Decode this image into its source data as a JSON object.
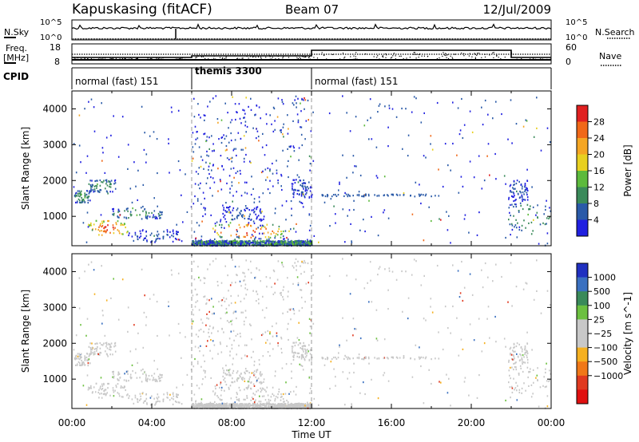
{
  "header": {
    "title": "Kapuskasing (fitACF)",
    "beam": "Beam 07",
    "date": "12/Jul/2009"
  },
  "noise_panel": {
    "left_label": "N.Sky",
    "left_ticks": [
      "10^5",
      "10^0"
    ],
    "right_label": "N.Search",
    "right_ticks": [
      "10^5",
      "10^0"
    ]
  },
  "freq_panel": {
    "left_label_1": "Freq.",
    "left_label_2": "[MHz]",
    "left_ticks": [
      "18",
      "8"
    ],
    "right_label": "Nave",
    "right_ticks": [
      "60",
      "0"
    ]
  },
  "cpid_panel": {
    "label": "CPID",
    "modes": [
      {
        "name": "normal (fast) 151",
        "start_hour": 0,
        "end_hour": 6
      },
      {
        "name": "themis 3300",
        "start_hour": 6,
        "end_hour": 12
      },
      {
        "name": "normal (fast) 151",
        "start_hour": 12,
        "end_hour": 24
      }
    ]
  },
  "x_axis": {
    "label": "Time UT",
    "range_hours": [
      0,
      24
    ],
    "ticks": [
      {
        "hour": 0,
        "label": "00:00"
      },
      {
        "hour": 4,
        "label": "04:00"
      },
      {
        "hour": 8,
        "label": "08:00"
      },
      {
        "hour": 12,
        "label": "12:00"
      },
      {
        "hour": 16,
        "label": "16:00"
      },
      {
        "hour": 20,
        "label": "20:00"
      },
      {
        "hour": 24,
        "label": "00:00"
      }
    ]
  },
  "power_panel": {
    "ylabel": "Slant Range [km]",
    "yticks": [
      1000,
      2000,
      3000,
      4000
    ],
    "colorbar_label": "Power [dB]",
    "colorbar_ticks": [
      "28",
      "24",
      "20",
      "16",
      "12",
      "8",
      "4"
    ],
    "colors": [
      "#e02020",
      "#f06818",
      "#f5a623",
      "#e8d020",
      "#5cba3c",
      "#3a8a5a",
      "#2a5aa8",
      "#2020e0"
    ]
  },
  "velocity_panel": {
    "ylabel": "Slant Range [km]",
    "yticks": [
      1000,
      2000,
      3000,
      4000
    ],
    "colorbar_label": "Velocity [m s^-1]",
    "colorbar_ticks": [
      "1000",
      "500",
      "100",
      "25",
      "−25",
      "−100",
      "−500",
      "−1000"
    ],
    "colors": [
      "#2030c0",
      "#3a70c0",
      "#3a8a5a",
      "#6cc040",
      "#c8c8c8",
      "#c8c8c8",
      "#f5b020",
      "#f07818",
      "#e03a20",
      "#e01010"
    ]
  },
  "chart_data": {
    "type": "heatmap",
    "x_unit": "hour UT",
    "y_unit": "km",
    "ylim": [
      180,
      4500
    ],
    "power_clusters": [
      {
        "x": [
          0.1,
          0.9
        ],
        "y": [
          1400,
          1750
        ],
        "level": "medium"
      },
      {
        "x": [
          0.8,
          2.2
        ],
        "y": [
          1700,
          2050
        ],
        "level": "medium"
      },
      {
        "x": [
          0.8,
          2.8
        ],
        "y": [
          500,
          900
        ],
        "level": "high"
      },
      {
        "x": [
          2.0,
          4.5
        ],
        "y": [
          950,
          1250
        ],
        "level": "medium"
      },
      {
        "x": [
          2.8,
          5.5
        ],
        "y": [
          300,
          650
        ],
        "level": "low"
      },
      {
        "x": [
          6.0,
          12.0
        ],
        "y": [
          180,
          400
        ],
        "level": "medium"
      },
      {
        "x": [
          7.0,
          10.5
        ],
        "y": [
          400,
          800
        ],
        "level": "high"
      },
      {
        "x": [
          7.5,
          9.5
        ],
        "y": [
          900,
          1300
        ],
        "level": "low"
      },
      {
        "x": [
          11.0,
          12.0
        ],
        "y": [
          1550,
          2050
        ],
        "level": "low"
      },
      {
        "x": [
          21.8,
          24.0
        ],
        "y": [
          500,
          1400
        ],
        "level": "medium"
      },
      {
        "x": [
          21.8,
          22.8
        ],
        "y": [
          1450,
          2050
        ],
        "level": "low"
      }
    ]
  }
}
